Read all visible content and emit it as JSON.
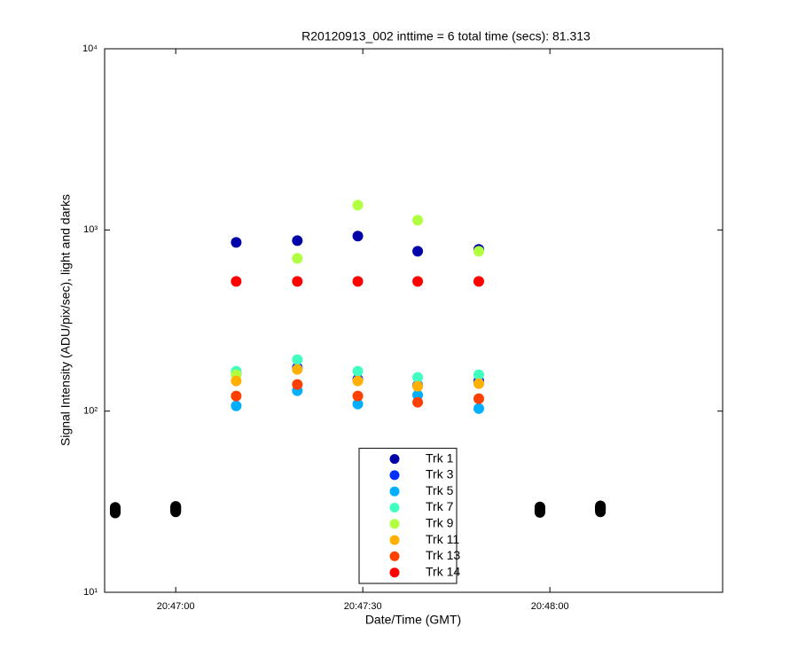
{
  "chart_data": {
    "type": "scatter",
    "title": "R20120913_002 inttime = 6 total time (secs): 81.313",
    "xlabel": "Date/Time (GMT)",
    "ylabel": "Signal Intensity (ADU/pix/sec), light and darks",
    "x": [
      74829.7,
      74839.5,
      74849.2,
      74858.8,
      74868.6
    ],
    "dark_x": [
      74810.3,
      74820.0,
      74878.4,
      74888.1
    ],
    "dark_color": "#000000",
    "xlim": [
      74808.6,
      74907.7
    ],
    "xticks": [
      {
        "value": 74820,
        "label": "20:47:00"
      },
      {
        "value": 74850,
        "label": "20:47:30"
      },
      {
        "value": 74880,
        "label": "20:48:00"
      }
    ],
    "ylim": [
      10,
      10000
    ],
    "yticks": [
      {
        "value": 10,
        "label": "10¹"
      },
      {
        "value": 100,
        "label": "10²"
      },
      {
        "value": 1000,
        "label": "10³"
      },
      {
        "value": 10000,
        "label": "10⁴"
      }
    ],
    "log_y": true,
    "grid": false,
    "legend": "south",
    "series": [
      {
        "name": "Trk 1",
        "color": "#0000a8",
        "values": [
          854,
          873,
          925,
          763,
          781
        ],
        "dark_values": [
          28.2,
          28.6,
          28.4,
          28.8
        ]
      },
      {
        "name": "Trk 3",
        "color": "#0030ff",
        "values": [
          160.6,
          173.8,
          150,
          138.7,
          146.8
        ],
        "dark_values": [
          28.8,
          29.2,
          29.0,
          29.4
        ]
      },
      {
        "name": "Trk 5",
        "color": "#00b0ff",
        "values": [
          106.9,
          129.6,
          109.4,
          122.5,
          103.4
        ],
        "dark_values": [
          27.4,
          27.8,
          27.6,
          27.8
        ]
      },
      {
        "name": "Trk 7",
        "color": "#40ffc0",
        "values": [
          166.2,
          192.4,
          166.2,
          153.6,
          158.8
        ],
        "dark_values": [
          29.4,
          29.8,
          29.6,
          30.0
        ]
      },
      {
        "name": "Trk 9",
        "color": "#b0ff40",
        "values": [
          158.8,
          696.6,
          1371,
          1132,
          763
        ],
        "dark_values": [
          28.0,
          28.4,
          28.2,
          28.6
        ]
      },
      {
        "name": "Trk 11",
        "color": "#ffb000",
        "values": [
          146.8,
          169.9,
          146.8,
          137.1,
          141.9
        ],
        "dark_values": [
          27.8,
          28.2,
          28.0,
          28.4
        ]
      },
      {
        "name": "Trk 13",
        "color": "#ff4000",
        "values": [
          121.1,
          140.3,
          121.1,
          111.9,
          117.2
        ],
        "dark_values": [
          28.6,
          29.0,
          28.8,
          29.2
        ]
      },
      {
        "name": "Trk 14",
        "color": "#ff0000",
        "values": [
          520,
          520,
          520,
          520,
          520
        ],
        "dark_values": [
          29.0,
          29.4,
          29.2,
          29.6
        ]
      }
    ]
  }
}
